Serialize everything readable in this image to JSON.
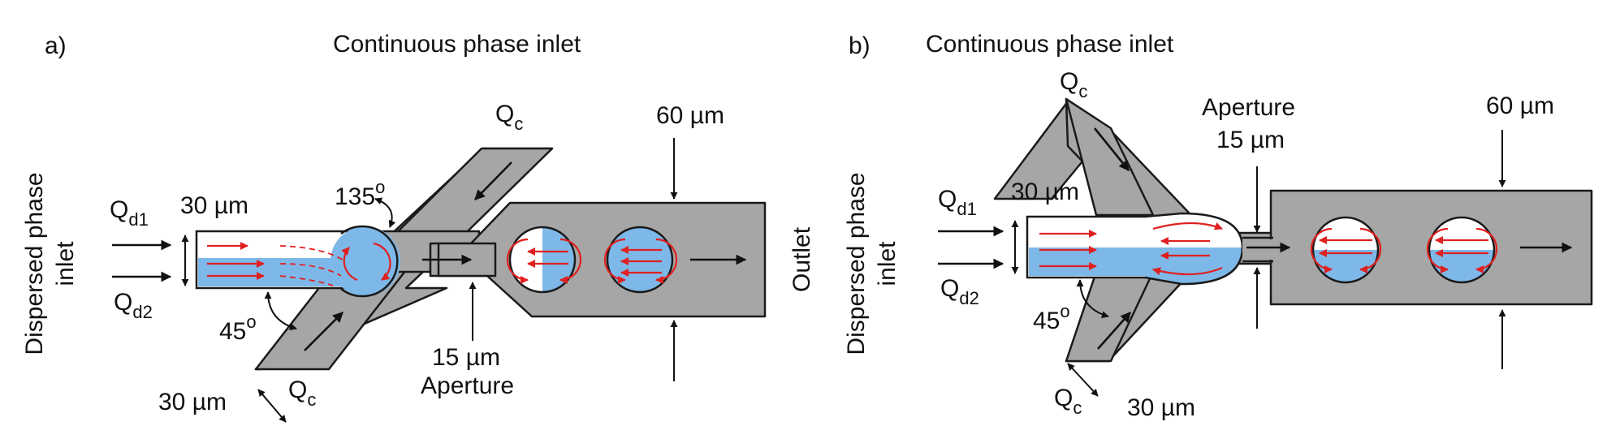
{
  "colors": {
    "channel": "#a6a6a6",
    "dispersed_phase": "#7db8e8",
    "flow_lines": "#e02020",
    "outline": "#1a1a1a"
  },
  "panel_a": {
    "letter": "a)",
    "title": "Continuous phase inlet",
    "dispersed_inlet": "Dispersed phase\ninlet",
    "qd1": "Q",
    "qd1_sub": "d1",
    "qd2": "Q",
    "qd2_sub": "d2",
    "width_label": "30 µm",
    "angle_top": "135",
    "angle_bottom": "45",
    "angle_sup": "o",
    "qc_top": "Q",
    "qc_top_sub": "c",
    "qc_bottom": "Q",
    "qc_bottom_sub": "c",
    "outlet_width": "60 µm",
    "aperture_width": "15 µm",
    "aperture": "Aperture",
    "inlet_width": "30 µm",
    "outlet": "Outlet"
  },
  "panel_b": {
    "letter": "b)",
    "title": "Continuous phase inlet",
    "dispersed_inlet": "Dispersed phase\ninlet",
    "qd1": "Q",
    "qd1_sub": "d1",
    "qd2": "Q",
    "qd2_sub": "d2",
    "width_label": "30 µm",
    "angle_bottom": "45",
    "angle_sup": "o",
    "qc_top": "Q",
    "qc_top_sub": "c",
    "qc_bottom": "Q",
    "qc_bottom_sub": "c",
    "aperture": "Aperture",
    "aperture_width": "15 µm",
    "outlet_width": "60 µm",
    "inlet_width": "30 µm"
  }
}
